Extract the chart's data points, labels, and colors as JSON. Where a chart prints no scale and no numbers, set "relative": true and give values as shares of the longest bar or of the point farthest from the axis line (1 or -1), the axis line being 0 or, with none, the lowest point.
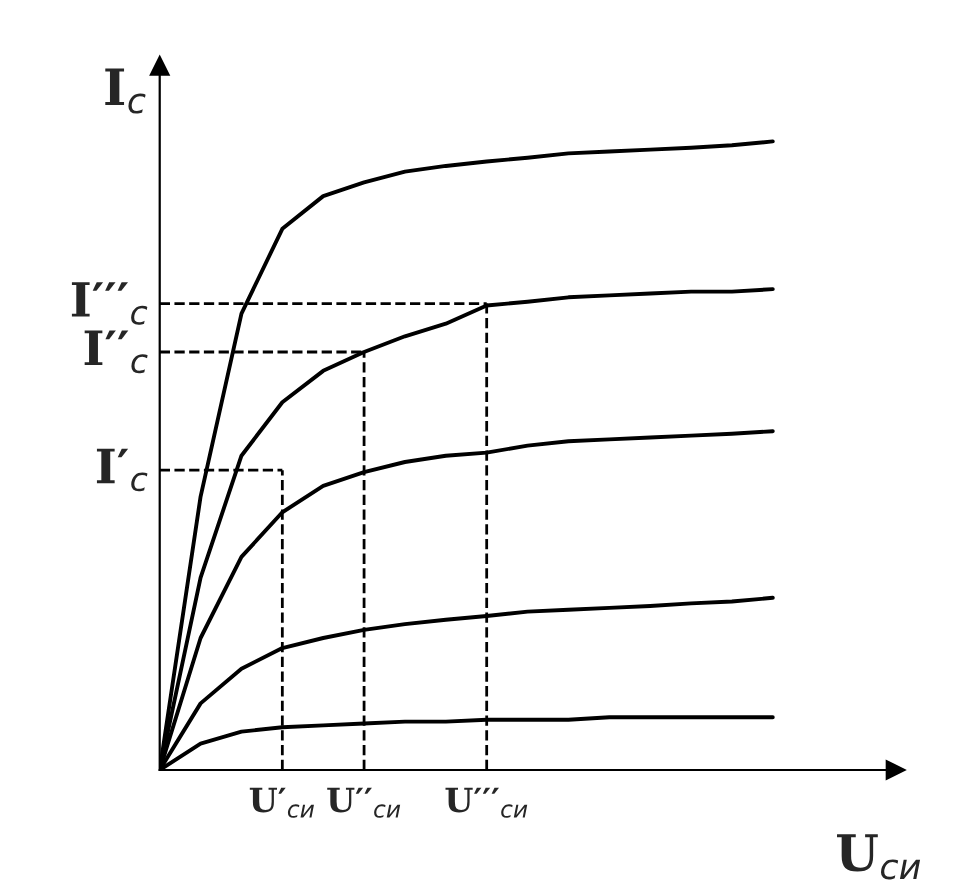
{
  "chart_data": {
    "type": "line",
    "relative": true,
    "xlabel": "U$_{си}$",
    "ylabel": "I$_{с}$",
    "categories": [
      null,
      null,
      null,
      "U′$_{си}$",
      null,
      "U′′$_{си}$",
      null,
      null,
      "U′′′$_{си}$",
      null,
      null,
      null,
      null,
      null,
      null,
      null
    ],
    "series": [
      {
        "color": "#000000",
        "values": [
          0,
          0.435,
          0.726,
          0.861,
          0.913,
          0.935,
          0.952,
          0.961,
          0.968,
          0.974,
          0.981,
          0.984,
          0.987,
          0.99,
          0.994,
          1
        ]
      },
      {
        "color": "#000000",
        "values": [
          0,
          0.306,
          0.5,
          0.585,
          0.635,
          0.665,
          0.69,
          0.71,
          0.739,
          0.745,
          0.752,
          0.755,
          0.758,
          0.761,
          0.761,
          0.765
        ]
      },
      {
        "color": "#000000",
        "values": [
          0,
          0.21,
          0.339,
          0.41,
          0.452,
          0.474,
          0.49,
          0.5,
          0.505,
          0.516,
          0.523,
          0.526,
          0.529,
          0.532,
          0.535,
          0.539
        ]
      },
      {
        "color": "#000000",
        "values": [
          0,
          0.106,
          0.161,
          0.194,
          0.21,
          0.223,
          0.232,
          0.239,
          0.245,
          0.252,
          0.255,
          0.258,
          0.261,
          0.265,
          0.268,
          0.274
        ]
      },
      {
        "color": "#000000",
        "values": [
          0,
          0.042,
          0.061,
          0.068,
          0.071,
          0.074,
          0.077,
          0.077,
          0.08,
          0.08,
          0.08,
          0.084,
          0.084,
          0.084,
          0.084,
          0.084
        ]
      }
    ],
    "ref_lines": [
      {
        "axis": "y",
        "value": 0.477,
        "label": "I′$_{с}$",
        "line_style": "dashed"
      },
      {
        "axis": "y",
        "value": 0.665,
        "label": "I′′$_{с}$",
        "line_style": "dashed"
      },
      {
        "axis": "y",
        "value": 0.742,
        "label": "I′′′$_{с}$",
        "line_style": "dashed"
      },
      {
        "axis": "x",
        "value": "U′$_{си}$",
        "line_style": "dashed"
      },
      {
        "axis": "x",
        "value": "U′′$_{си}$",
        "line_style": "dashed"
      },
      {
        "axis": "x",
        "value": "U′′′$_{си}$",
        "line_style": "dashed"
      }
    ]
  }
}
